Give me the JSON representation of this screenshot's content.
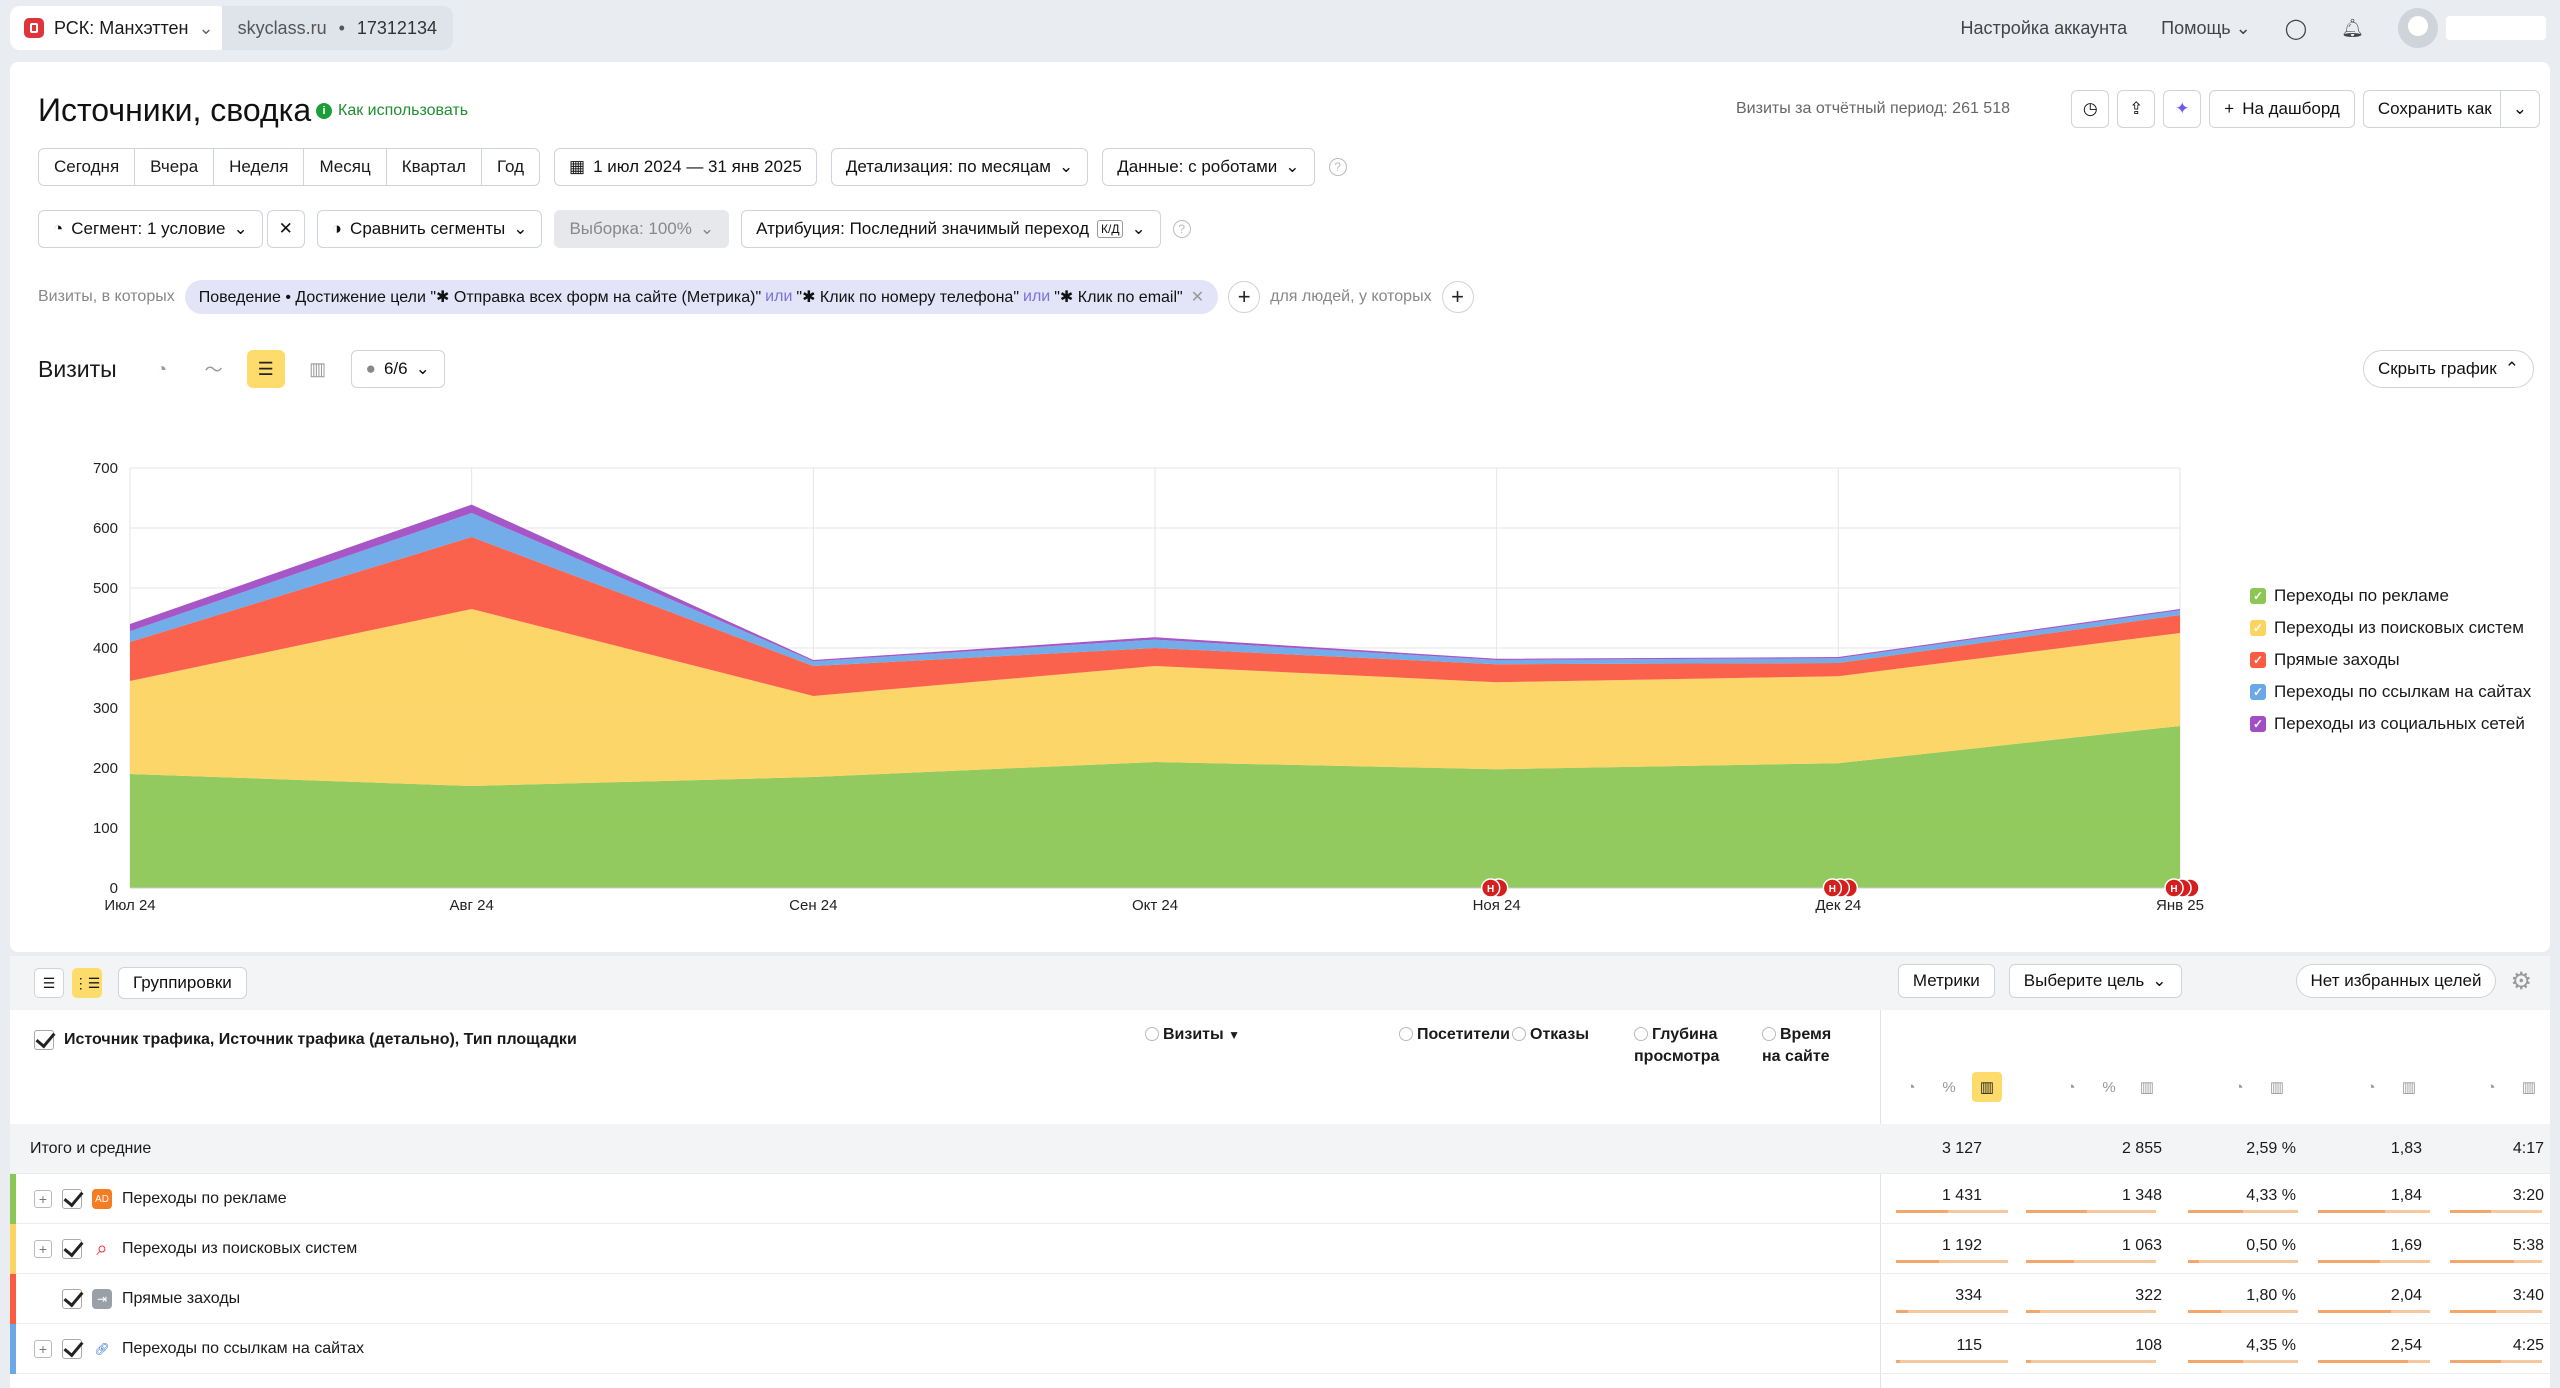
{
  "topbar": {
    "counter": "РСК: Манхэттен",
    "site": "skyclass.ru",
    "counter_id": "17312134",
    "account_settings": "Настройка аккаунта",
    "help": "Помощь"
  },
  "header": {
    "title": "Источники, сводка",
    "how_to": "Как использовать",
    "visits_total": "Визиты за отчётный период: 261 518",
    "to_dashboard": "На дашборд",
    "save_as": "Сохранить как"
  },
  "periods": [
    "Сегодня",
    "Вчера",
    "Неделя",
    "Месяц",
    "Квартал",
    "Год"
  ],
  "date_range": "1 июл 2024 — 31 янв 2025",
  "detail": "Детализация: по месяцам",
  "robots": "Данные: с роботами",
  "segment": "Сегмент: 1 условие",
  "compare": "Сравнить сегменты",
  "sample": "Выборка: 100%",
  "attribution": "Атрибуция: Последний значимый переход",
  "attribution_badge": "К/Д",
  "filter": {
    "visits_label": "Визиты, в которых",
    "chip_part1": "Поведение • Достижение цели \"✱ Отправка всех форм на сайте (Метрика)\"",
    "or1": "или",
    "chip_part2": "\"✱ Клик по номеру телефона\"",
    "or2": "или",
    "chip_part3": "\"✱ Клик по email\"",
    "people_label": "для людей, у которых"
  },
  "chart_head": {
    "title": "Визиты",
    "series_count": "6/6",
    "hide": "Скрыть график"
  },
  "chart_data": {
    "type": "area",
    "stacked": true,
    "x": [
      "Июл 24",
      "Авг 24",
      "Сен 24",
      "Окт 24",
      "Ноя 24",
      "Дек 24",
      "Янв 25"
    ],
    "ylim": [
      0,
      700
    ],
    "yticks": [
      0,
      100,
      200,
      300,
      400,
      500,
      600,
      700
    ],
    "series": [
      {
        "name": "Переходы по рекламе",
        "color": "#8cc756",
        "values": [
          190,
          170,
          185,
          210,
          198,
          208,
          270
        ]
      },
      {
        "name": "Переходы из поисковых систем",
        "color": "#fdd462",
        "values": [
          155,
          295,
          135,
          160,
          145,
          145,
          155
        ]
      },
      {
        "name": "Прямые заходы",
        "color": "#fb5a43",
        "values": [
          65,
          120,
          50,
          30,
          30,
          22,
          30
        ]
      },
      {
        "name": "Переходы по ссылкам на сайтах",
        "color": "#6aa8e8",
        "values": [
          18,
          40,
          8,
          14,
          7,
          8,
          8
        ]
      },
      {
        "name": "Переходы из социальных сетей",
        "color": "#a24dc4",
        "values": [
          12,
          14,
          2,
          4,
          2,
          2,
          2
        ]
      }
    ],
    "markers": [
      {
        "x": "Ноя 24",
        "count": 2
      },
      {
        "x": "Дек 24",
        "count": 3
      },
      {
        "x": "Янв 25",
        "count": 3
      }
    ],
    "marker_label": "Н"
  },
  "table": {
    "groupings": "Группировки",
    "metrics": "Метрики",
    "choose_goal": "Выберите цель",
    "no_goals": "Нет избранных целей",
    "dimension": "Источник трафика, Источник трафика (детально), Тип площадки",
    "headers": [
      "Визиты",
      "Посетители",
      "Отказы",
      "Глубина просмотра",
      "Время на сайте"
    ],
    "sort_mark": "▼",
    "total": {
      "label": "Итого и средние",
      "values": [
        "3 127",
        "2 855",
        "2,59 %",
        "1,83",
        "4:17"
      ]
    },
    "rows": [
      {
        "label": "Переходы по рекламе",
        "color": "#8cc756",
        "icon": "AD",
        "values": [
          "1 431",
          "1 348",
          "4,33 %",
          "1,84",
          "3:20"
        ],
        "bars": [
          0.46,
          0.47,
          0.5,
          0.6,
          0.45
        ]
      },
      {
        "label": "Переходы из поисковых систем",
        "color": "#fdd462",
        "icon": "search",
        "values": [
          "1 192",
          "1 063",
          "0,50 %",
          "1,69",
          "5:38"
        ],
        "bars": [
          0.38,
          0.37,
          0.1,
          0.55,
          0.7
        ]
      },
      {
        "label": "Прямые заходы",
        "color": "#fb5a43",
        "icon": "arrow",
        "values": [
          "334",
          "322",
          "1,80 %",
          "2,04",
          "3:40"
        ],
        "bars": [
          0.11,
          0.11,
          0.3,
          0.65,
          0.5
        ]
      },
      {
        "label": "Переходы по ссылкам на сайтах",
        "color": "#6aa8e8",
        "icon": "link",
        "values": [
          "115",
          "108",
          "4,35 %",
          "2,54",
          "4:25"
        ],
        "bars": [
          0.04,
          0.04,
          0.5,
          0.8,
          0.55
        ]
      }
    ]
  }
}
